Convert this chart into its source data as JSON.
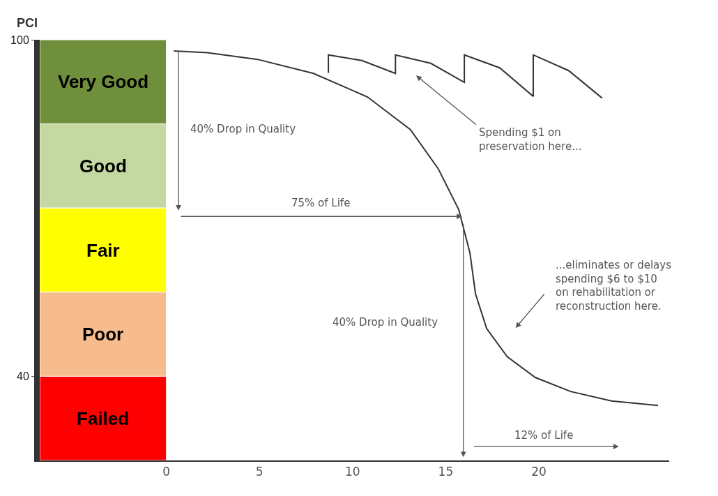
{
  "chart_data": {
    "type": "line",
    "ylabel": "PCI",
    "xlim": [
      -6.8,
      27
    ],
    "xticks": [
      0,
      5,
      10,
      15,
      20
    ],
    "ylim": [
      25,
      100
    ],
    "yticks": [
      100,
      40
    ],
    "grid": false,
    "marker": "none",
    "line_style": "solid",
    "series": [
      {
        "color": "#333333",
        "x": [
          0.4,
          2.2,
          4.9,
          7.9,
          10.8,
          13.1,
          14.6,
          15.7,
          16.3,
          16.6,
          17.2,
          18.3,
          19.8,
          21.7,
          23.9,
          26.4
        ],
        "values": [
          98,
          97.7,
          96.5,
          94,
          89.8,
          84,
          77,
          69.7,
          62,
          54.7,
          48.5,
          43.5,
          39.8,
          37.3,
          35.6,
          34.8
        ]
      },
      {
        "color": "#333333",
        "x": [
          8.7,
          8.7,
          10.5,
          12.3,
          12.3,
          14.2,
          16.0,
          16.0,
          17.9,
          19.7,
          19.7,
          21.6,
          23.4
        ],
        "values": [
          94.1,
          97.3,
          96.3,
          94,
          97.3,
          95.8,
          92.4,
          97.3,
          95,
          89.9,
          97.3,
          94.5,
          89.6
        ]
      }
    ],
    "bands": [
      {
        "axis": "y",
        "from": 85,
        "to": 100,
        "label": "Very Good",
        "color": "#6f8f3c"
      },
      {
        "axis": "y",
        "from": 70,
        "to": 85,
        "label": "Good",
        "color": "#c4d9a1"
      },
      {
        "axis": "y",
        "from": 55,
        "to": 70,
        "label": "Fair",
        "color": "#ffff00"
      },
      {
        "axis": "y",
        "from": 40,
        "to": 55,
        "label": "Poor",
        "color": "#f7bc8d"
      },
      {
        "axis": "y",
        "from": 25,
        "to": 40,
        "label": "Failed",
        "color": "#ff0000"
      }
    ],
    "annotations": [
      "40% Drop in Quality",
      "75% of Life",
      "40% Drop in Quality",
      "12% of Life",
      "Spending $1 on\npreservation here...",
      "...eliminates or delays\nspending $6 to $10\non rehabilitation or\nreconstruction here."
    ]
  }
}
